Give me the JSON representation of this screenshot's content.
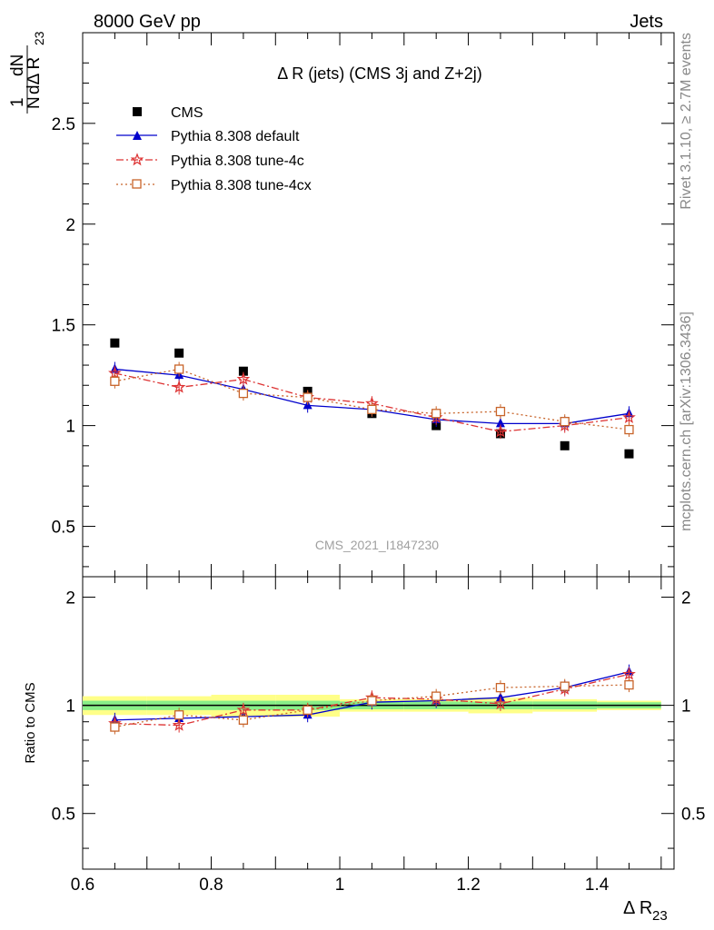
{
  "header": {
    "left": "8000 GeV pp",
    "right": "Jets"
  },
  "side_texts": {
    "rivet": "Rivet 3.1.10, ≥ 2.7M events",
    "mcplots": "mcplots.cern.ch [arXiv:1306.3436]"
  },
  "main_plot": {
    "title": "Δ R (jets) (CMS 3j and Z+2j)",
    "watermark": "CMS_2021_I1847230",
    "ylabel_num": "1",
    "ylabel_den": "N",
    "ylabel_frac_num": "dN",
    "ylabel_frac_den": "dΔ R",
    "ylabel_sub": "23",
    "legend": [
      {
        "label": "CMS",
        "color": "#000000",
        "marker": "square"
      },
      {
        "label": "Pythia 8.308 default",
        "color": "#0000cc",
        "marker": "triangle",
        "dash": "solid"
      },
      {
        "label": "Pythia 8.308 tune-4c",
        "color": "#dd3333",
        "marker": "star",
        "dash": "dashdot"
      },
      {
        "label": "Pythia 8.308 tune-4cx",
        "color": "#c8642a",
        "marker": "open-square",
        "dash": "dotted"
      }
    ]
  },
  "ratio_plot": {
    "ylabel": "Ratio to CMS"
  },
  "xaxis": {
    "label": "Δ R",
    "label_sub": "23"
  },
  "chart_data": [
    {
      "type": "scatter",
      "panel": "main",
      "xlim": [
        0.6,
        1.52
      ],
      "ylim": [
        0.25,
        2.95
      ],
      "yticks": [
        0.5,
        1,
        1.5,
        2,
        2.5
      ],
      "ytick_labels": [
        "0.5",
        "1",
        "1.5",
        "2",
        "2.5"
      ],
      "bin_edges": [
        0.6,
        0.7,
        0.8,
        0.9,
        1.0,
        1.1,
        1.2,
        1.3,
        1.4,
        1.5
      ],
      "x": [
        0.65,
        0.75,
        0.85,
        0.95,
        1.05,
        1.15,
        1.25,
        1.35,
        1.45
      ],
      "series": [
        {
          "name": "CMS",
          "values": [
            1.41,
            1.36,
            1.27,
            1.17,
            1.06,
            1.0,
            0.96,
            0.9,
            0.86
          ]
        },
        {
          "name": "Pythia 8.308 default",
          "values": [
            1.28,
            1.25,
            1.18,
            1.1,
            1.08,
            1.03,
            1.01,
            1.01,
            1.06
          ]
        },
        {
          "name": "Pythia 8.308 tune-4c",
          "values": [
            1.26,
            1.19,
            1.23,
            1.14,
            1.11,
            1.04,
            0.97,
            1.0,
            1.04
          ]
        },
        {
          "name": "Pythia 8.308 tune-4cx",
          "values": [
            1.22,
            1.28,
            1.16,
            1.14,
            1.08,
            1.06,
            1.07,
            1.02,
            0.98
          ]
        }
      ]
    },
    {
      "type": "line",
      "panel": "ratio",
      "xlim": [
        0.6,
        1.52
      ],
      "ylim": [
        0.35,
        2.28
      ],
      "yticks": [
        0.5,
        1,
        2
      ],
      "ytick_labels": [
        "0.5",
        "1",
        "2"
      ],
      "xticks": [
        0.6,
        0.8,
        1.0,
        1.2,
        1.4
      ],
      "xtick_labels": [
        "0.6",
        "0.8",
        "1",
        "1.2",
        "1.4"
      ],
      "bin_edges": [
        0.6,
        0.7,
        0.8,
        0.9,
        1.0,
        1.1,
        1.2,
        1.3,
        1.4,
        1.5
      ],
      "x": [
        0.65,
        0.75,
        0.85,
        0.95,
        1.05,
        1.15,
        1.25,
        1.35,
        1.45
      ],
      "band_inner": [
        0.03,
        0.03,
        0.03,
        0.03,
        0.025,
        0.025,
        0.025,
        0.025,
        0.02
      ],
      "band_outer": [
        0.06,
        0.06,
        0.07,
        0.07,
        0.04,
        0.04,
        0.05,
        0.04,
        0.03
      ],
      "series": [
        {
          "name": "Pythia 8.308 default",
          "values": [
            0.91,
            0.92,
            0.93,
            0.94,
            1.02,
            1.03,
            1.05,
            1.12,
            1.24
          ]
        },
        {
          "name": "Pythia 8.308 tune-4c",
          "values": [
            0.89,
            0.88,
            0.97,
            0.97,
            1.05,
            1.04,
            1.01,
            1.11,
            1.22
          ]
        },
        {
          "name": "Pythia 8.308 tune-4cx",
          "values": [
            0.87,
            0.94,
            0.91,
            0.97,
            1.03,
            1.06,
            1.12,
            1.13,
            1.14
          ]
        }
      ]
    }
  ]
}
